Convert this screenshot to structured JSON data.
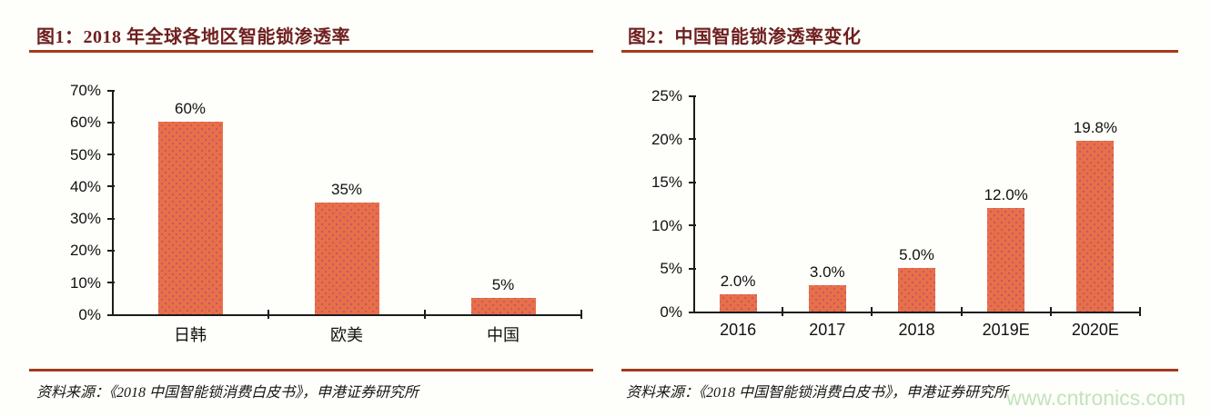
{
  "page": {
    "watermark": "www.cntronics.com",
    "watermark_color": "#c3e3bd",
    "background": "#fefefa"
  },
  "colors": {
    "title_text": "#6e1f1f",
    "title_rule": "#a43a1c",
    "bar_fill": "#e87049",
    "bar_dot_texture": "#cc5360",
    "axis": "#1c1c1c"
  },
  "chart_data": [
    {
      "type": "bar",
      "title": "图1：2018 年全球各地区智能锁渗透率",
      "categories": [
        "日韩",
        "欧美",
        "中国"
      ],
      "values": [
        60,
        35,
        5
      ],
      "data_labels": [
        "60%",
        "35%",
        "5%"
      ],
      "ylim": [
        0,
        70
      ],
      "ytick_values": [
        0,
        10,
        20,
        30,
        40,
        50,
        60,
        70
      ],
      "ytick_labels": [
        "0%",
        "10%",
        "20%",
        "30%",
        "40%",
        "50%",
        "60%",
        "70%"
      ],
      "grid": false,
      "legend": "none",
      "source": "资料来源：《2018 中国智能锁消费白皮书》，申港证券研究所"
    },
    {
      "type": "bar",
      "title": "图2：中国智能锁渗透率变化",
      "categories": [
        "2016",
        "2017",
        "2018",
        "2019E",
        "2020E"
      ],
      "values": [
        2.0,
        3.0,
        5.0,
        12.0,
        19.8
      ],
      "data_labels": [
        "2.0%",
        "3.0%",
        "5.0%",
        "12.0%",
        "19.8%"
      ],
      "ylim": [
        0,
        25
      ],
      "ytick_values": [
        0,
        5,
        10,
        15,
        20,
        25
      ],
      "ytick_labels": [
        "0%",
        "5%",
        "10%",
        "15%",
        "20%",
        "25%"
      ],
      "grid": false,
      "legend": "none",
      "source": "资料来源：《2018 中国智能锁消费白皮书》，申港证券研究所"
    }
  ]
}
